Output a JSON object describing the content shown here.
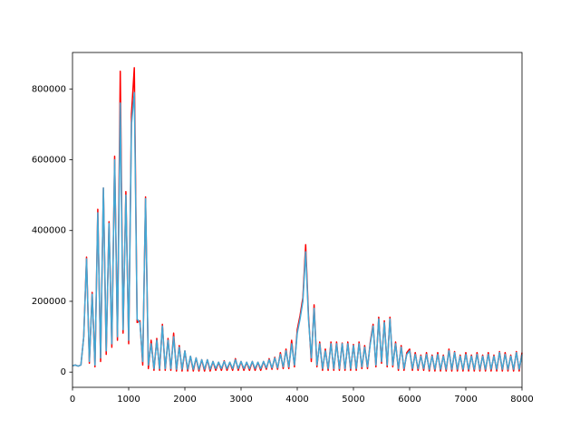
{
  "chart_data": {
    "type": "line",
    "x": [
      0,
      50,
      100,
      150,
      200,
      250,
      300,
      350,
      400,
      450,
      500,
      550,
      600,
      650,
      700,
      750,
      800,
      850,
      900,
      950,
      1000,
      1050,
      1100,
      1150,
      1200,
      1250,
      1300,
      1350,
      1400,
      1450,
      1500,
      1550,
      1600,
      1650,
      1700,
      1750,
      1800,
      1850,
      1900,
      1950,
      2000,
      2050,
      2100,
      2150,
      2200,
      2250,
      2300,
      2350,
      2400,
      2450,
      2500,
      2550,
      2600,
      2650,
      2700,
      2750,
      2800,
      2850,
      2900,
      2950,
      3000,
      3050,
      3100,
      3150,
      3200,
      3250,
      3300,
      3350,
      3400,
      3450,
      3500,
      3550,
      3600,
      3650,
      3700,
      3750,
      3800,
      3850,
      3900,
      3950,
      4000,
      4050,
      4100,
      4150,
      4200,
      4250,
      4300,
      4350,
      4400,
      4450,
      4500,
      4550,
      4600,
      4650,
      4700,
      4750,
      4800,
      4850,
      4900,
      4950,
      5000,
      5050,
      5100,
      5150,
      5200,
      5250,
      5300,
      5350,
      5400,
      5450,
      5500,
      5550,
      5600,
      5650,
      5700,
      5750,
      5800,
      5850,
      5900,
      5950,
      6000,
      6050,
      6100,
      6150,
      6200,
      6250,
      6300,
      6350,
      6400,
      6450,
      6500,
      6550,
      6600,
      6650,
      6700,
      6750,
      6800,
      6850,
      6900,
      6950,
      7000,
      7050,
      7100,
      7150,
      7200,
      7250,
      7300,
      7350,
      7400,
      7450,
      7500,
      7550,
      7600,
      7650,
      7700,
      7750,
      7800,
      7850,
      7900,
      7950,
      8000
    ],
    "series": [
      {
        "color": "#ff0000",
        "values": [
          18000,
          20000,
          17000,
          20000,
          100000,
          325000,
          25000,
          225000,
          15000,
          460000,
          30000,
          520000,
          50000,
          425000,
          70000,
          610000,
          90000,
          850000,
          110000,
          510000,
          80000,
          730000,
          860000,
          140000,
          145000,
          20000,
          495000,
          10000,
          90000,
          5000,
          95000,
          5000,
          135000,
          5000,
          95000,
          5000,
          110000,
          3000,
          75000,
          3000,
          60000,
          3000,
          45000,
          3000,
          40000,
          3000,
          35000,
          3000,
          35000,
          3000,
          30000,
          5000,
          28000,
          5000,
          32000,
          5000,
          28000,
          5000,
          38000,
          5000,
          30000,
          5000,
          28000,
          5000,
          30000,
          5000,
          28000,
          5000,
          30000,
          8000,
          38000,
          8000,
          42000,
          8000,
          55000,
          10000,
          65000,
          10000,
          90000,
          15000,
          120000,
          160000,
          210000,
          360000,
          160000,
          30000,
          190000,
          15000,
          85000,
          5000,
          65000,
          5000,
          85000,
          5000,
          85000,
          5000,
          82000,
          5000,
          85000,
          5000,
          78000,
          5000,
          85000,
          10000,
          75000,
          10000,
          85000,
          135000,
          15000,
          155000,
          25000,
          145000,
          15000,
          155000,
          15000,
          85000,
          5000,
          75000,
          5000,
          55000,
          65000,
          5000,
          55000,
          5000,
          48000,
          5000,
          55000,
          3000,
          48000,
          3000,
          55000,
          3000,
          48000,
          3000,
          65000,
          3000,
          58000,
          3000,
          48000,
          3000,
          55000,
          3000,
          48000,
          3000,
          55000,
          3000,
          48000,
          3000,
          55000,
          3000,
          48000,
          3000,
          58000,
          3000,
          55000,
          3000,
          48000,
          3000,
          58000,
          3000,
          55000
        ]
      },
      {
        "color": "#42a8d5",
        "values": [
          18000,
          20000,
          17000,
          20000,
          100000,
          320000,
          30000,
          220000,
          20000,
          450000,
          40000,
          520000,
          60000,
          420000,
          80000,
          600000,
          100000,
          760000,
          120000,
          500000,
          90000,
          700000,
          790000,
          150000,
          140000,
          30000,
          490000,
          20000,
          80000,
          10000,
          90000,
          10000,
          130000,
          10000,
          90000,
          10000,
          100000,
          8000,
          70000,
          8000,
          60000,
          8000,
          45000,
          8000,
          40000,
          8000,
          35000,
          8000,
          35000,
          8000,
          30000,
          10000,
          28000,
          10000,
          30000,
          10000,
          28000,
          10000,
          35000,
          10000,
          30000,
          10000,
          28000,
          10000,
          30000,
          10000,
          28000,
          10000,
          30000,
          12000,
          35000,
          12000,
          40000,
          12000,
          50000,
          15000,
          60000,
          15000,
          80000,
          20000,
          110000,
          150000,
          200000,
          340000,
          150000,
          40000,
          180000,
          20000,
          80000,
          10000,
          60000,
          10000,
          80000,
          10000,
          80000,
          10000,
          80000,
          10000,
          80000,
          10000,
          75000,
          10000,
          80000,
          15000,
          70000,
          15000,
          80000,
          130000,
          20000,
          150000,
          30000,
          140000,
          20000,
          150000,
          20000,
          80000,
          10000,
          70000,
          10000,
          50000,
          60000,
          10000,
          50000,
          10000,
          45000,
          10000,
          50000,
          8000,
          45000,
          8000,
          50000,
          8000,
          45000,
          8000,
          60000,
          8000,
          55000,
          8000,
          45000,
          8000,
          50000,
          8000,
          45000,
          8000,
          50000,
          8000,
          45000,
          8000,
          50000,
          8000,
          45000,
          8000,
          55000,
          8000,
          50000,
          8000,
          45000,
          8000,
          55000,
          8000,
          50000
        ]
      }
    ],
    "xlim": [
      0,
      8000
    ],
    "xticks": [
      0,
      1000,
      2000,
      3000,
      4000,
      5000,
      6000,
      7000,
      8000
    ],
    "ylim": [
      -43000,
      903000
    ],
    "yticks": [
      0,
      200000,
      400000,
      600000,
      800000
    ]
  }
}
